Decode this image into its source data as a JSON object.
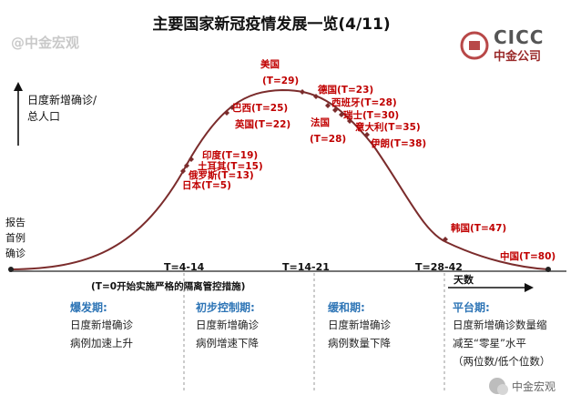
{
  "title": "主要国家新冠疫情发展一览(4/11)",
  "watermark_top": "@中金宏观",
  "brand": {
    "latin": "CICC",
    "chinese": "中金公司"
  },
  "y_axis_label": [
    "日度新增确诊/",
    "总人口"
  ],
  "start_label": [
    "报告",
    "首例",
    "确诊"
  ],
  "days_label": "天数",
  "ticks": [
    "T=4-14",
    "T=14-21",
    "T=28-42"
  ],
  "note": "(T=0开始实施严格的隔离管控措施)",
  "countries": {
    "usa": "美国",
    "usa_t": "(T=29)",
    "brazil": "巴西(T=25)",
    "uk": "英国(T=22)",
    "india": "印度(T=19)",
    "turkey": "土耳其(T=15)",
    "russia": "俄罗斯(T=13)",
    "japan": "日本(T=5)",
    "germany": "德国(T=23)",
    "spain": "西班牙(T=28)",
    "swiss": "瑞士(T=30)",
    "italy": "意大利(T=35)",
    "iran": "伊朗(T=38)",
    "france": "法国",
    "france_t": "(T=28)",
    "korea": "韩国(T=47)",
    "china": "中国(T=80)"
  },
  "phases": [
    {
      "title": "爆发期:",
      "lines": [
        "日度新增确诊",
        "病例加速上升"
      ]
    },
    {
      "title": "初步控制期:",
      "lines": [
        "日度新增确诊",
        "病例增速下降"
      ]
    },
    {
      "title": "缓和期:",
      "lines": [
        "日度新增确诊",
        "病例数量下降"
      ]
    },
    {
      "title": "平台期:",
      "lines": [
        "日度新增确诊数量缩",
        "减至“零星”水平",
        "（两位数/低个位数）"
      ]
    }
  ],
  "footer_watermark": "中金宏观",
  "colors": {
    "curve": "#7b2c2c",
    "country_text": "#c00000",
    "phase_title": "#2e75b6",
    "divider": "#999999"
  }
}
